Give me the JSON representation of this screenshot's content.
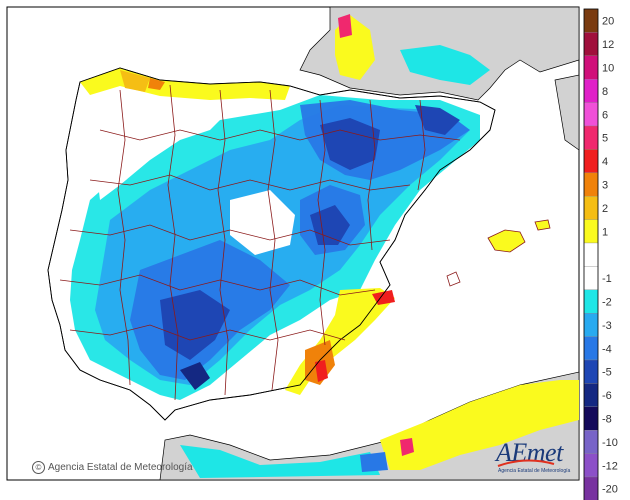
{
  "credit": {
    "symbol": "©",
    "text": "Agencia Estatal de Meteorología"
  },
  "logo": {
    "word": "AEmet",
    "tagline": "Agencia Estatal de Meteorología"
  },
  "legend": {
    "items": [
      {
        "label": "20",
        "color": "#7a3b10"
      },
      {
        "label": "12",
        "color": "#a0103c"
      },
      {
        "label": "10",
        "color": "#d0107a"
      },
      {
        "label": "8",
        "color": "#e020c8"
      },
      {
        "label": "6",
        "color": "#f050d8"
      },
      {
        "label": "5",
        "color": "#f0286e"
      },
      {
        "label": "4",
        "color": "#f01e1e"
      },
      {
        "label": "3",
        "color": "#f0820a"
      },
      {
        "label": "2",
        "color": "#f5be14"
      },
      {
        "label": "1",
        "color": "#fafa1e"
      },
      {
        "label": "",
        "color": "#ffffff"
      },
      {
        "label": "-1",
        "color": "#ffffff"
      },
      {
        "label": "-2",
        "color": "#1ee6e6"
      },
      {
        "label": "-3",
        "color": "#28aaf0"
      },
      {
        "label": "-4",
        "color": "#2878e6"
      },
      {
        "label": "-5",
        "color": "#1e46b4"
      },
      {
        "label": "-6",
        "color": "#142882"
      },
      {
        "label": "-8",
        "color": "#140a5a"
      },
      {
        "label": "-10",
        "color": "#7864c8"
      },
      {
        "label": "-12",
        "color": "#8c50c8"
      },
      {
        "label": "-20",
        "color": "#7832a0"
      }
    ]
  },
  "map_colors": {
    "sea": "#ffffff",
    "land_other": "#d2d2d2",
    "border": "#000000",
    "province_line": "#8b1a1a",
    "cold_1": "#1ee6e6",
    "cold_2": "#28aaf0",
    "cold_3": "#2878e6",
    "cold_4": "#1e46b4",
    "cold_5": "#142882",
    "warm_1": "#fafa1e",
    "warm_2": "#f5be14",
    "warm_3": "#f0820a",
    "warm_4": "#f01e1e",
    "warm_5": "#d0107a"
  }
}
